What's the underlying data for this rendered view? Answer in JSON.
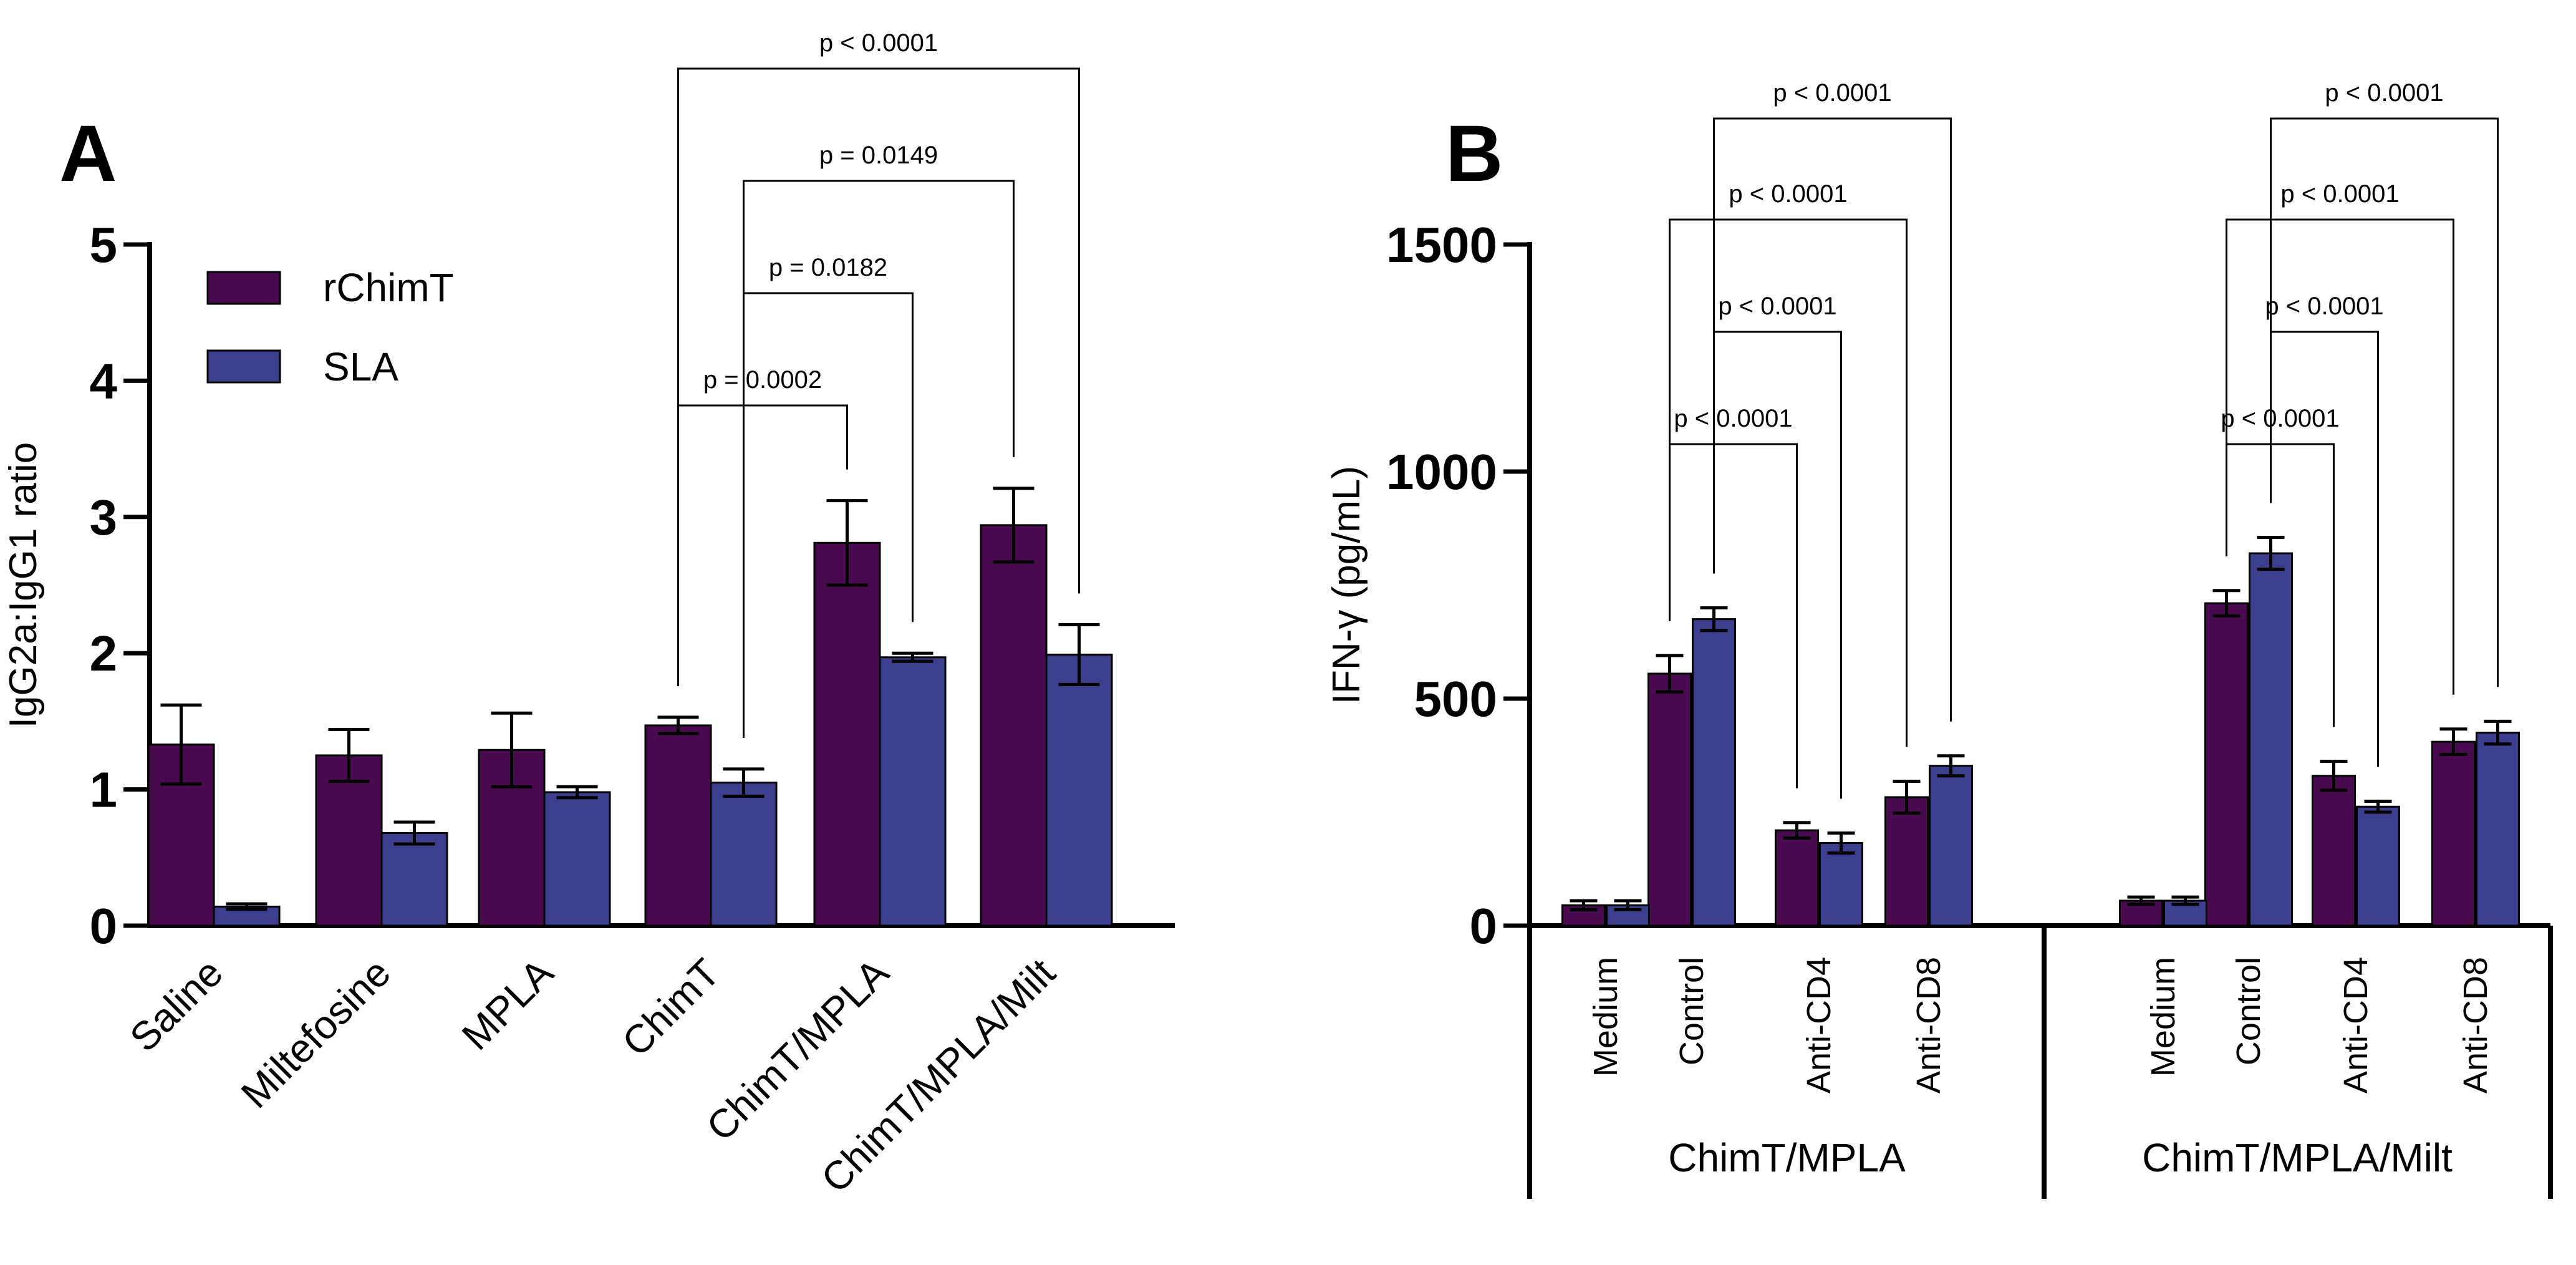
{
  "colors": {
    "rChimT": "#4a0a4f",
    "SLA": "#3b3f8e"
  },
  "chart_data": [
    {
      "panel": "A",
      "type": "bar",
      "ylabel": "IgG2a:IgG1 ratio",
      "ylim": [
        0,
        5
      ],
      "yticks": [
        "0",
        "1",
        "2",
        "3",
        "4",
        "5"
      ],
      "categories": [
        "Saline",
        "Miltefosine",
        "MPLA",
        "ChimT",
        "ChimT/MPLA",
        "ChimT/MPLA/Milt"
      ],
      "legend": [
        "rChimT",
        "SLA"
      ],
      "series": [
        {
          "name": "rChimT",
          "values": [
            1.33,
            1.25,
            1.29,
            1.47,
            2.81,
            2.94
          ],
          "errors": [
            0.29,
            0.19,
            0.27,
            0.06,
            0.31,
            0.27
          ]
        },
        {
          "name": "SLA",
          "values": [
            0.14,
            0.68,
            0.98,
            1.05,
            1.97,
            1.99
          ],
          "errors": [
            0.02,
            0.08,
            0.04,
            0.1,
            0.03,
            0.22
          ]
        }
      ],
      "comparisons": [
        {
          "label": "p = 0.0002",
          "from": [
            3,
            0
          ],
          "to": [
            4,
            0
          ]
        },
        {
          "label": "p = 0.0182",
          "from": [
            3,
            1
          ],
          "to": [
            4,
            1
          ]
        },
        {
          "label": "p = 0.0149",
          "from": [
            3,
            1
          ],
          "to": [
            5,
            0
          ]
        },
        {
          "label": "p < 0.0001",
          "from": [
            3,
            0
          ],
          "to": [
            5,
            1
          ]
        }
      ]
    },
    {
      "panel": "B",
      "type": "bar",
      "ylabel": "IFN-γ (pg/mL)",
      "ylim": [
        0,
        1500
      ],
      "yticks": [
        "0",
        "500",
        "1000",
        "1500"
      ],
      "groups": [
        {
          "label": "ChimT/MPLA",
          "categories": [
            "Medium",
            "Control",
            "Anti-CD4",
            "Anti-CD8"
          ]
        },
        {
          "label": "ChimT/MPLA/Milt",
          "categories": [
            "Medium",
            "Control",
            "Anti-CD4",
            "Anti-CD8"
          ]
        }
      ],
      "series": [
        {
          "name": "rChimT",
          "values": [
            45,
            555,
            210,
            283,
            55,
            710,
            330,
            405
          ],
          "errors": [
            10,
            40,
            17,
            35,
            8,
            28,
            32,
            28
          ]
        },
        {
          "name": "SLA",
          "values": [
            45,
            675,
            182,
            352,
            55,
            820,
            262,
            425
          ],
          "errors": [
            10,
            25,
            22,
            22,
            8,
            35,
            12,
            25
          ]
        }
      ],
      "comparisons": [
        {
          "label": "p < 0.0001",
          "from": [
            1,
            0
          ],
          "to": [
            2,
            0
          ]
        },
        {
          "label": "p < 0.0001",
          "from": [
            1,
            1
          ],
          "to": [
            2,
            1
          ]
        },
        {
          "label": "p < 0.0001",
          "from": [
            1,
            0
          ],
          "to": [
            3,
            0
          ]
        },
        {
          "label": "p < 0.0001",
          "from": [
            1,
            1
          ],
          "to": [
            3,
            1
          ]
        },
        {
          "label": "p < 0.0001",
          "from": [
            5,
            0
          ],
          "to": [
            6,
            0
          ]
        },
        {
          "label": "p < 0.0001",
          "from": [
            5,
            1
          ],
          "to": [
            6,
            1
          ]
        },
        {
          "label": "p < 0.0001",
          "from": [
            5,
            0
          ],
          "to": [
            7,
            0
          ]
        },
        {
          "label": "p < 0.0001",
          "from": [
            5,
            1
          ],
          "to": [
            7,
            1
          ]
        }
      ]
    }
  ]
}
